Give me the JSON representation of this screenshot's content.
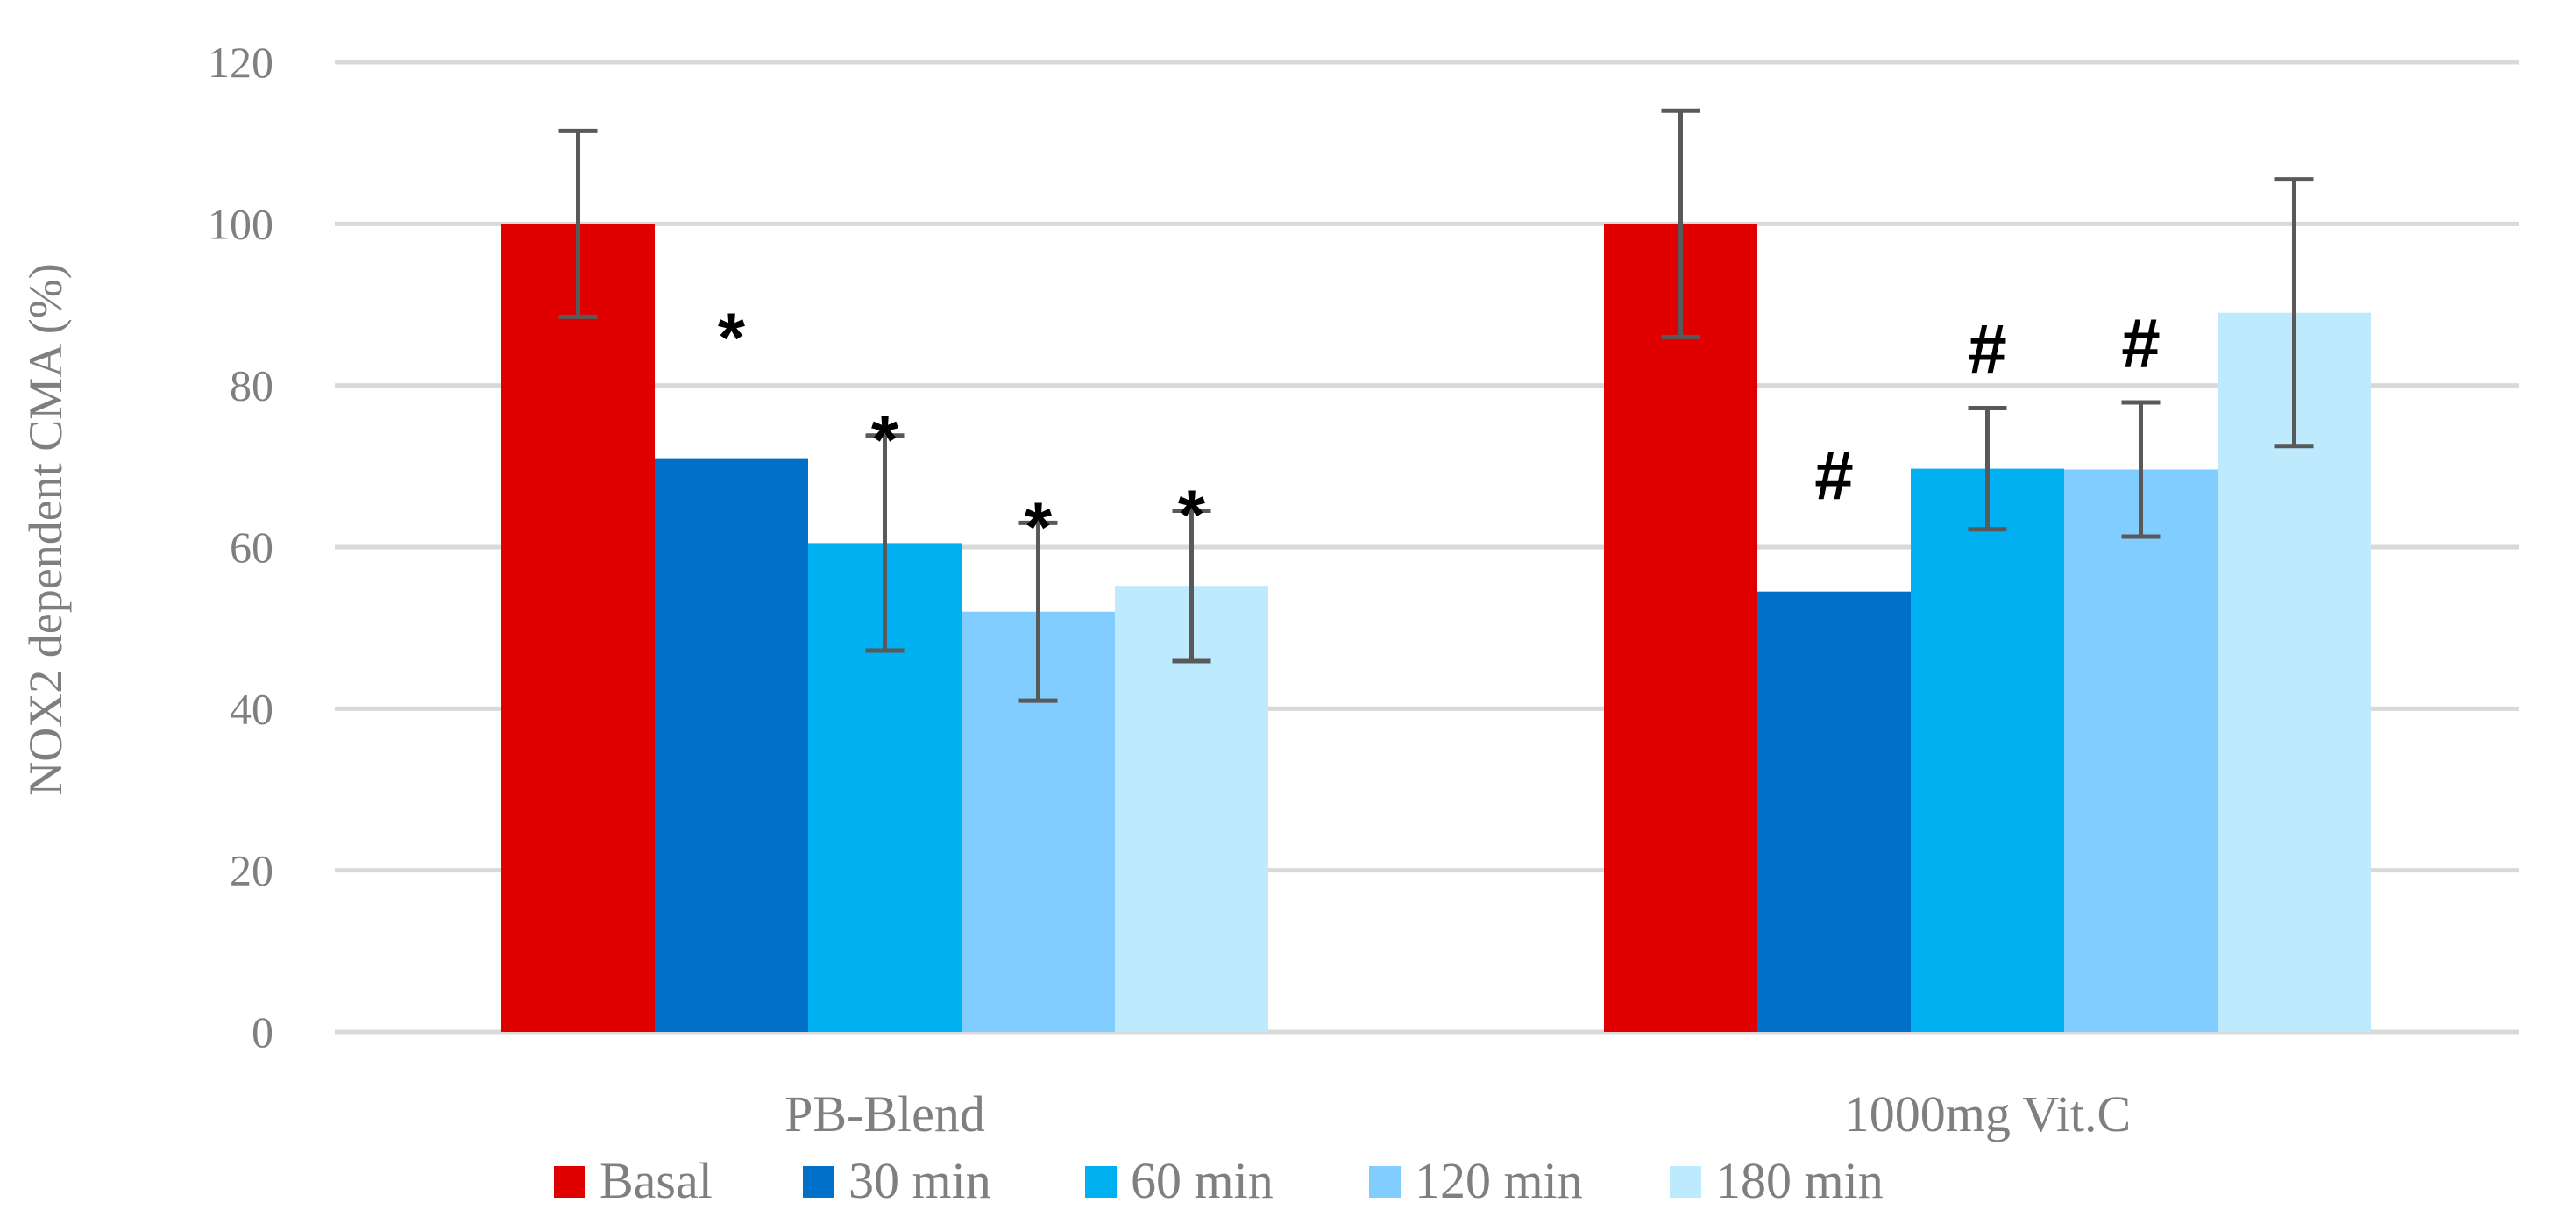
{
  "chart_data": {
    "type": "bar",
    "title": "",
    "xlabel": "",
    "ylabel": "NOX2 dependent CMA (%)",
    "ylim": [
      0,
      120
    ],
    "yticks": [
      0,
      20,
      40,
      60,
      80,
      100,
      120
    ],
    "grid": true,
    "legend_position": "bottom",
    "categories": [
      "PB-Blend",
      "1000mg Vit.C"
    ],
    "series": [
      {
        "name": "Basal",
        "color": "#e00000",
        "values": [
          100,
          100
        ],
        "errors": [
          11.5,
          14
        ],
        "marks": [
          "",
          ""
        ]
      },
      {
        "name": "30 min",
        "color": "#0070c8",
        "values": [
          71,
          54.5
        ],
        "errors": [
          0,
          0
        ],
        "marks": [
          "*",
          "#"
        ]
      },
      {
        "name": "60 min",
        "color": "#00b0f0",
        "values": [
          60.5,
          69.7
        ],
        "errors": [
          13.3,
          7.5
        ],
        "marks": [
          "*",
          "#"
        ]
      },
      {
        "name": "120 min",
        "color": "#82cdff",
        "values": [
          52,
          69.6
        ],
        "errors": [
          11,
          8.3
        ],
        "marks": [
          "*",
          "#"
        ]
      },
      {
        "name": "180 min",
        "color": "#bdeafd",
        "values": [
          55.2,
          89
        ],
        "errors": [
          9.3,
          16.5
        ],
        "marks": [
          "*",
          ""
        ]
      }
    ]
  }
}
